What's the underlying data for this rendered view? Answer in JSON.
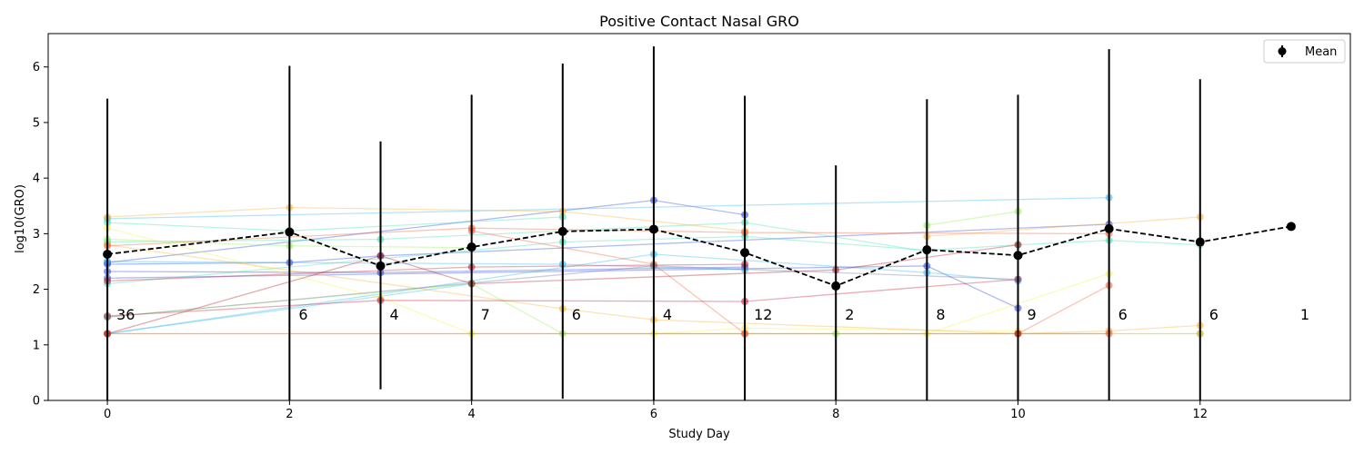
{
  "chart_data": {
    "type": "line",
    "title": "Positive Contact Nasal GRO",
    "xlabel": "Study Day",
    "ylabel": "log10(GRO)",
    "xlim": [
      -0.65,
      13.65
    ],
    "ylim": [
      0,
      6.6
    ],
    "xticks": [
      0,
      2,
      4,
      6,
      8,
      10,
      12
    ],
    "yticks": [
      0,
      1,
      2,
      3,
      4,
      5,
      6
    ],
    "legend": {
      "placement": "top-right",
      "entries": [
        "Mean"
      ]
    },
    "mean": {
      "name": "Mean",
      "color": "#000000",
      "points": [
        {
          "x": 0,
          "y": 2.63,
          "lower": 0.0,
          "upper": 5.43,
          "n": "36"
        },
        {
          "x": 2,
          "y": 3.03,
          "lower": 0.0,
          "upper": 6.02,
          "n": "6"
        },
        {
          "x": 3,
          "y": 2.42,
          "lower": 0.2,
          "upper": 4.66,
          "n": "4"
        },
        {
          "x": 4,
          "y": 2.76,
          "lower": 0.0,
          "upper": 5.5,
          "n": "7"
        },
        {
          "x": 5,
          "y": 3.04,
          "lower": 0.03,
          "upper": 6.06,
          "n": "6"
        },
        {
          "x": 6,
          "y": 3.08,
          "lower": 0.0,
          "upper": 6.37,
          "n": "4"
        },
        {
          "x": 7,
          "y": 2.66,
          "lower": 0.0,
          "upper": 5.48,
          "n": "12"
        },
        {
          "x": 8,
          "y": 2.06,
          "lower": 0.0,
          "upper": 4.23,
          "n": "2"
        },
        {
          "x": 9,
          "y": 2.71,
          "lower": 0.0,
          "upper": 5.42,
          "n": "8"
        },
        {
          "x": 10,
          "y": 2.61,
          "lower": 0.0,
          "upper": 5.5,
          "n": "9"
        },
        {
          "x": 11,
          "y": 3.09,
          "lower": 0.0,
          "upper": 6.32,
          "n": "6"
        },
        {
          "x": 12,
          "y": 2.85,
          "lower": 0.0,
          "upper": 5.78,
          "n": "6"
        },
        {
          "x": 13,
          "y": 3.13,
          "lower": 3.13,
          "upper": 3.13,
          "n": "1"
        }
      ]
    },
    "subjects": [
      {
        "color": "#1f3fe0",
        "x": [
          0,
          6,
          7
        ],
        "y": [
          2.48,
          3.6,
          3.34
        ]
      },
      {
        "color": "#1f3fe0",
        "x": [
          0,
          9,
          10
        ],
        "y": [
          2.2,
          2.42,
          1.66
        ]
      },
      {
        "color": "#1f3fe0",
        "x": [
          0,
          3,
          7
        ],
        "y": [
          2.32,
          2.3,
          2.4
        ]
      },
      {
        "color": "#1f3fe0",
        "x": [
          0,
          2,
          3,
          11
        ],
        "y": [
          2.45,
          2.48,
          2.6,
          3.17
        ]
      },
      {
        "color": "#2bb5f0",
        "x": [
          0,
          11
        ],
        "y": [
          3.27,
          3.65
        ]
      },
      {
        "color": "#2bb5f0",
        "x": [
          0,
          6,
          9,
          10
        ],
        "y": [
          1.2,
          2.63,
          2.3,
          2.15
        ]
      },
      {
        "color": "#2bb5f0",
        "x": [
          0,
          4
        ],
        "y": [
          1.2,
          2.1
        ]
      },
      {
        "color": "#2bb5f0",
        "x": [
          0,
          5,
          7
        ],
        "y": [
          2.5,
          2.45,
          2.35
        ]
      },
      {
        "color": "#35e0b0",
        "x": [
          0,
          2,
          5
        ],
        "y": [
          3.2,
          3.05,
          3.3
        ]
      },
      {
        "color": "#35e0b0",
        "x": [
          0,
          3,
          7,
          9
        ],
        "y": [
          2.85,
          2.9,
          3.2,
          2.68
        ]
      },
      {
        "color": "#35e0b0",
        "x": [
          0,
          5,
          7,
          9,
          10,
          11,
          12
        ],
        "y": [
          2.1,
          2.85,
          2.95,
          2.7,
          2.8,
          2.88,
          2.8
        ]
      },
      {
        "color": "#8cf04a",
        "x": [
          0,
          2,
          4
        ],
        "y": [
          2.9,
          2.78,
          2.75
        ]
      },
      {
        "color": "#8cf04a",
        "x": [
          0,
          4,
          5,
          8,
          12
        ],
        "y": [
          1.5,
          2.1,
          1.2,
          1.2,
          1.2
        ]
      },
      {
        "color": "#8cf04a",
        "x": [
          9,
          10
        ],
        "y": [
          3.15,
          3.4
        ]
      },
      {
        "color": "#f0f040",
        "x": [
          0,
          3,
          4,
          9,
          11
        ],
        "y": [
          3.1,
          1.85,
          1.2,
          1.2,
          2.28
        ]
      },
      {
        "color": "#f0f040",
        "x": [
          6,
          7,
          10
        ],
        "y": [
          1.2,
          1.3,
          1.25
        ]
      },
      {
        "color": "#f7b02a",
        "x": [
          0,
          2,
          5,
          7
        ],
        "y": [
          3.3,
          3.47,
          3.4,
          3.05
        ]
      },
      {
        "color": "#f7b02a",
        "x": [
          9,
          12
        ],
        "y": [
          2.95,
          3.3
        ]
      },
      {
        "color": "#f7b02a",
        "x": [
          0,
          5,
          6,
          10,
          11,
          12
        ],
        "y": [
          2.8,
          1.65,
          1.45,
          1.2,
          1.25,
          1.35
        ]
      },
      {
        "color": "#f7b02a",
        "x": [
          0,
          12
        ],
        "y": [
          1.2,
          1.2
        ]
      },
      {
        "color": "#f05a2a",
        "x": [
          0,
          4,
          7,
          11
        ],
        "y": [
          2.78,
          3.1,
          3.02,
          3.0
        ]
      },
      {
        "color": "#f05a2a",
        "x": [
          0,
          7,
          11
        ],
        "y": [
          1.2,
          1.2,
          1.2
        ]
      },
      {
        "color": "#f05a2a",
        "x": [
          4,
          6,
          7
        ],
        "y": [
          3.05,
          2.45,
          1.2
        ]
      },
      {
        "color": "#f05a2a",
        "x": [
          10,
          11
        ],
        "y": [
          1.2,
          2.07
        ]
      },
      {
        "color": "#c8102e",
        "x": [
          0,
          3,
          7,
          10
        ],
        "y": [
          1.52,
          1.8,
          1.78,
          2.18
        ]
      },
      {
        "color": "#c8102e",
        "x": [
          0,
          4,
          7
        ],
        "y": [
          2.15,
          2.4,
          2.45
        ]
      },
      {
        "color": "#b0101a",
        "x": [
          0,
          3,
          4,
          8,
          10
        ],
        "y": [
          1.2,
          2.6,
          2.1,
          2.35,
          2.8
        ]
      },
      {
        "color": "#b0101a",
        "x": [
          10
        ],
        "y": [
          1.2
        ]
      },
      {
        "color": "#6a6f9a",
        "x": [
          0,
          6,
          10
        ],
        "y": [
          1.5,
          2.42,
          2.18
        ]
      }
    ]
  }
}
